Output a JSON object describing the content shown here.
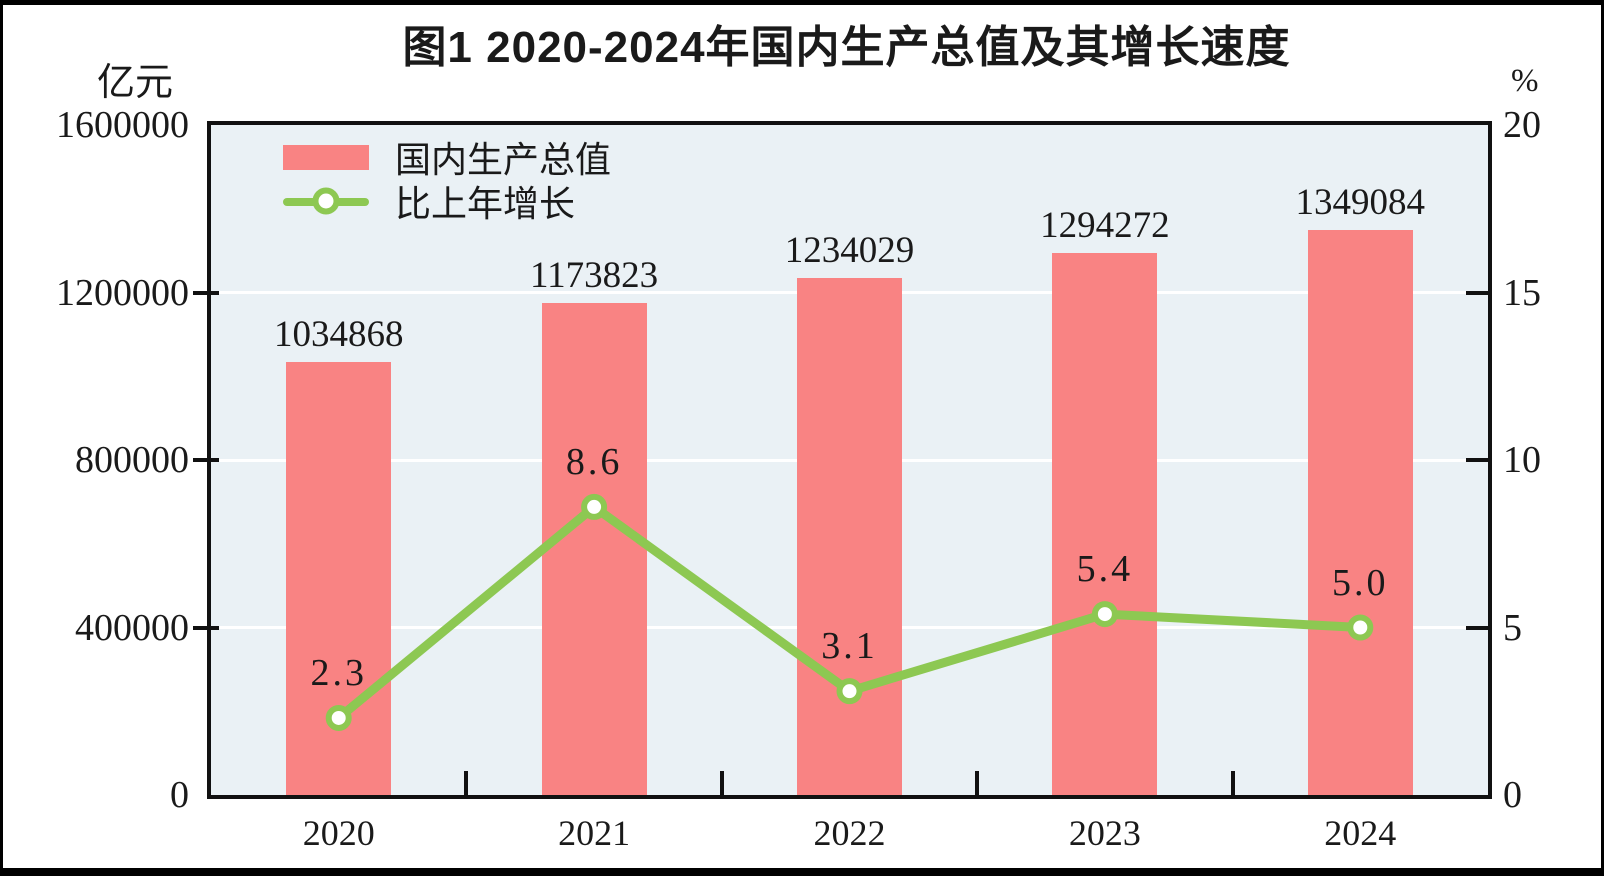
{
  "chart_data": {
    "type": "combo-bar-line",
    "title": "图1  2020-2024年国内生产总值及其增长速度",
    "categories": [
      "2020",
      "2021",
      "2022",
      "2023",
      "2024"
    ],
    "series": [
      {
        "name": "国内生产总值",
        "type": "bar",
        "axis": "left",
        "color": "#F98383",
        "values": [
          1034868,
          1173823,
          1234029,
          1294272,
          1349084
        ],
        "labels": [
          "1034868",
          "1173823",
          "1234029",
          "1294272",
          "1349084"
        ]
      },
      {
        "name": "比上年增长",
        "type": "line",
        "axis": "right",
        "color": "#8DC852",
        "marker": "circle-white-fill",
        "values": [
          2.3,
          8.6,
          3.1,
          5.4,
          5.0
        ],
        "labels": [
          "2.3",
          "8.6",
          "3.1",
          "5.4",
          "5.0"
        ]
      }
    ],
    "left_axis": {
      "unit": "亿元",
      "min": 0,
      "max": 1600000,
      "tick_labels": [
        "1600000",
        "1200000",
        "800000",
        "400000",
        "0"
      ]
    },
    "right_axis": {
      "unit": "%",
      "min": 0,
      "max": 20,
      "tick_labels": [
        "20",
        "15",
        "10",
        "5",
        "0"
      ]
    },
    "legend": {
      "position": "top-left",
      "entries": [
        "国内生产总值",
        "比上年增长"
      ]
    },
    "grid": true,
    "colors": {
      "bar": "#F98383",
      "line": "#8DC852",
      "plot_bg": "#EAF1F5",
      "grid": "#FFFFFF",
      "axis": "#111111",
      "text": "#1A1A1A",
      "frame": "#000000"
    }
  }
}
